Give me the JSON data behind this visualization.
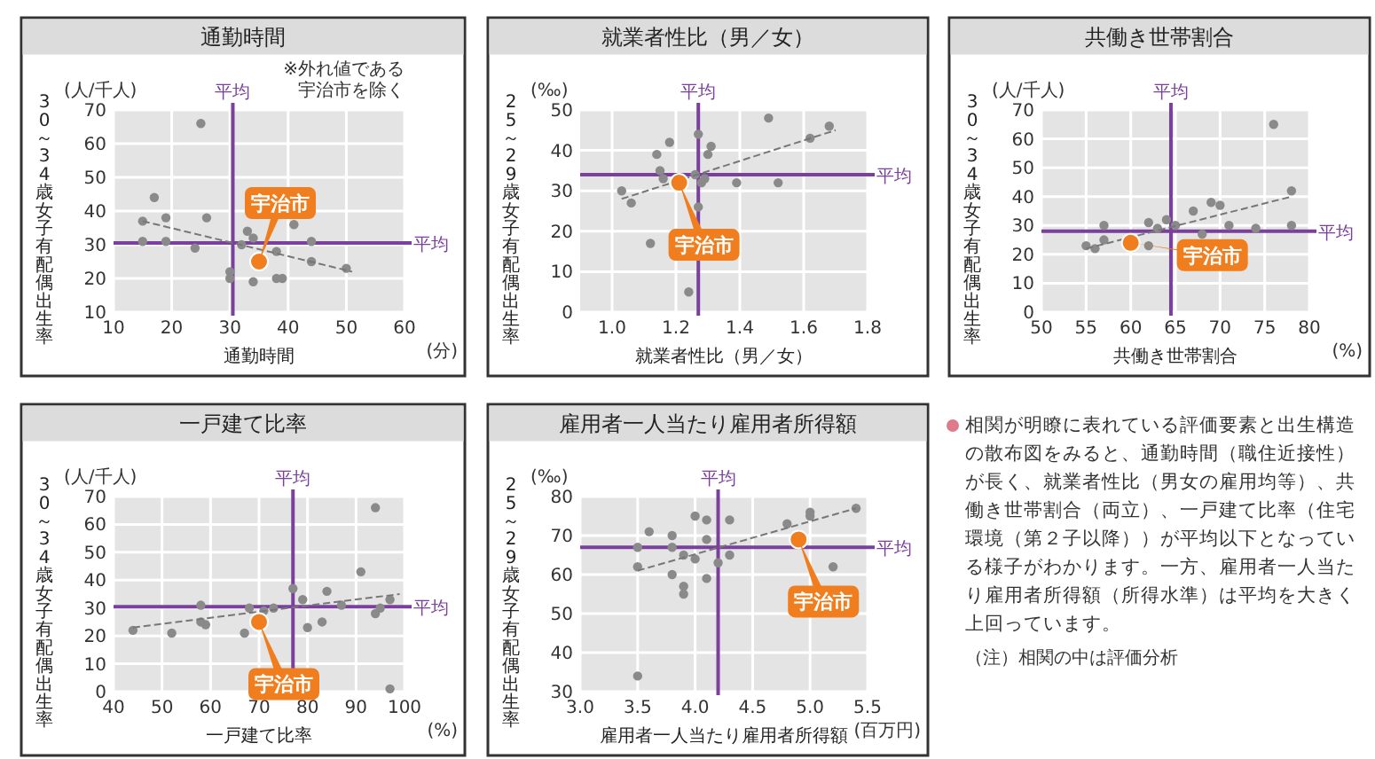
{
  "chart_data": [
    {
      "type": "scatter",
      "title": "通勤時間",
      "xlabel": "通勤時間",
      "ylabel": "30～34歳女子有配偶出生率",
      "xlim": [
        10,
        60
      ],
      "ylim": [
        10,
        70
      ],
      "xticks": [
        10,
        20,
        30,
        40,
        50,
        60
      ],
      "yticks": [
        10,
        20,
        30,
        40,
        50,
        60,
        70
      ],
      "grid": true,
      "marker": "circle",
      "series": [
        {
          "type": "scatter",
          "color": "#8a8a8a",
          "x": [
            25,
            17,
            15,
            19,
            26,
            15,
            19,
            24,
            33,
            34,
            32,
            30,
            30,
            34,
            38,
            39,
            41,
            44,
            44,
            50,
            38
          ],
          "values": [
            66,
            44,
            37,
            38,
            38,
            31,
            31,
            29,
            34,
            32,
            30,
            22,
            20,
            19,
            20,
            20,
            36,
            31,
            25,
            23,
            28
          ]
        },
        {
          "type": "line",
          "color": "#777777",
          "line_style": "dashed",
          "marker": "none",
          "x": [
            15,
            51
          ],
          "values": [
            37,
            22
          ]
        },
        {
          "type": "scatter",
          "color": "#f07d1e",
          "x": [
            35
          ],
          "values": [
            25
          ]
        }
      ],
      "ref_lines": [
        {
          "axis": "x",
          "value": 30.5,
          "label": "平均",
          "color": "#7b3f9e"
        },
        {
          "axis": "y",
          "value": 30.5,
          "label": "平均",
          "color": "#7b3f9e"
        }
      ],
      "annotations": [
        "(人/千人)",
        "(分)",
        "※外れ値である",
        "宇治市を除く",
        {
          "text": "宇治市",
          "x": 35,
          "y": 25
        }
      ]
    },
    {
      "type": "scatter",
      "title": "就業者性比（男／女）",
      "xlabel": "就業者性比（男／女）",
      "ylabel": "25～29歳女子有配偶出生率",
      "xlim": [
        0.9,
        1.8
      ],
      "ylim": [
        0,
        50
      ],
      "xticks": [
        {
          "value": 1,
          "label": "1.0"
        },
        1.2,
        1.4,
        1.6,
        1.8
      ],
      "yticks": [
        0,
        10,
        20,
        30,
        40,
        50
      ],
      "grid": true,
      "marker": "circle",
      "series": [
        {
          "type": "scatter",
          "color": "#8a8a8a",
          "x": [
            1.03,
            1.06,
            1.14,
            1.16,
            1.18,
            1.15,
            1.27,
            1.3,
            1.31,
            1.29,
            1.27,
            1.12,
            1.24,
            1.39,
            1.52,
            1.49,
            1.62,
            1.68,
            1.26,
            1.28
          ],
          "values": [
            30,
            27,
            39,
            33,
            42,
            35,
            44,
            39,
            41,
            33,
            26,
            17,
            5,
            32,
            32,
            48,
            43,
            46,
            34,
            32
          ]
        },
        {
          "type": "line",
          "color": "#777777",
          "line_style": "dashed",
          "marker": "none",
          "x": [
            1.03,
            1.7
          ],
          "values": [
            28,
            45
          ]
        },
        {
          "type": "scatter",
          "color": "#f07d1e",
          "x": [
            1.21
          ],
          "values": [
            32
          ]
        }
      ],
      "ref_lines": [
        {
          "axis": "x",
          "value": 1.27,
          "label": "平均",
          "color": "#7b3f9e"
        },
        {
          "axis": "y",
          "value": 34,
          "label": "平均",
          "color": "#7b3f9e"
        }
      ],
      "annotations": [
        "(‰)",
        {
          "text": "宇治市",
          "x": 1.21,
          "y": 32
        }
      ]
    },
    {
      "type": "scatter",
      "title": "共働き世帯割合",
      "xlabel": "共働き世帯割合",
      "ylabel": "30～34歳女子有配偶出生率",
      "xlim": [
        50,
        80
      ],
      "ylim": [
        0,
        70
      ],
      "xticks": [
        50,
        55,
        60,
        65,
        70,
        75,
        80
      ],
      "yticks": [
        0,
        10,
        20,
        30,
        40,
        50,
        60,
        70
      ],
      "grid": true,
      "marker": "circle",
      "series": [
        {
          "type": "scatter",
          "color": "#8a8a8a",
          "x": [
            57,
            55,
            56,
            57,
            62,
            63,
            62,
            64,
            65,
            67,
            68,
            69,
            70,
            71,
            74,
            76,
            78,
            78
          ],
          "values": [
            30,
            23,
            22,
            25,
            23,
            29,
            31,
            32,
            30,
            35,
            27,
            38,
            37,
            30,
            29,
            65,
            42,
            30
          ]
        },
        {
          "type": "line",
          "color": "#777777",
          "line_style": "dashed",
          "marker": "none",
          "x": [
            55,
            78
          ],
          "values": [
            22,
            40
          ]
        },
        {
          "type": "scatter",
          "color": "#f07d1e",
          "x": [
            60
          ],
          "values": [
            24
          ]
        }
      ],
      "ref_lines": [
        {
          "axis": "x",
          "value": 64.5,
          "label": "平均",
          "color": "#7b3f9e"
        },
        {
          "axis": "y",
          "value": 28,
          "label": "平均",
          "color": "#7b3f9e"
        }
      ],
      "annotations": [
        "(人/千人)",
        "(%)",
        {
          "text": "宇治市",
          "x": 60,
          "y": 24
        }
      ]
    },
    {
      "type": "scatter",
      "title": "一戸建て比率",
      "xlabel": "一戸建て比率",
      "ylabel": "30～34歳女子有配偶出生率",
      "xlim": [
        40,
        100
      ],
      "ylim": [
        0,
        70
      ],
      "xticks": [
        40,
        50,
        60,
        70,
        80,
        90,
        100
      ],
      "yticks": [
        0,
        10,
        20,
        30,
        40,
        50,
        60,
        70
      ],
      "grid": true,
      "marker": "circle",
      "series": [
        {
          "type": "scatter",
          "color": "#8a8a8a",
          "x": [
            44,
            52,
            58,
            58,
            59,
            67,
            68,
            71,
            73,
            77,
            79,
            80,
            83,
            84,
            87,
            91,
            94,
            94,
            95,
            97,
            97
          ],
          "values": [
            22,
            21,
            31,
            25,
            24,
            21,
            30,
            29,
            30,
            37,
            33,
            23,
            25,
            36,
            31,
            43,
            66,
            28,
            30,
            33,
            1
          ]
        },
        {
          "type": "line",
          "color": "#777777",
          "line_style": "dashed",
          "marker": "none",
          "x": [
            44,
            99
          ],
          "values": [
            23,
            35
          ]
        },
        {
          "type": "scatter",
          "color": "#f07d1e",
          "x": [
            70
          ],
          "values": [
            25
          ]
        }
      ],
      "ref_lines": [
        {
          "axis": "x",
          "value": 77,
          "label": "平均",
          "color": "#7b3f9e"
        },
        {
          "axis": "y",
          "value": 30.5,
          "label": "平均",
          "color": "#7b3f9e"
        }
      ],
      "annotations": [
        "(人/千人)",
        "(%)",
        {
          "text": "宇治市",
          "x": 70,
          "y": 25
        }
      ]
    },
    {
      "type": "scatter",
      "title": "雇用者一人当たり雇用者所得額",
      "xlabel": "雇用者一人当たり雇用者所得額",
      "ylabel": "25～29歳女子有配偶出生率",
      "xlim": [
        3,
        5.5
      ],
      "ylim": [
        30,
        80
      ],
      "xticks": [
        {
          "value": 3,
          "label": "3.0"
        },
        3.5,
        {
          "value": 4,
          "label": "4.0"
        },
        4.5,
        {
          "value": 5,
          "label": "5.0"
        },
        5.5
      ],
      "yticks": [
        30,
        40,
        50,
        60,
        70,
        80
      ],
      "grid": true,
      "marker": "circle",
      "series": [
        {
          "type": "scatter",
          "color": "#8a8a8a",
          "x": [
            3.5,
            3.6,
            3.5,
            3.8,
            3.8,
            3.9,
            3.9,
            3.9,
            4.0,
            4.1,
            4.0,
            4.1,
            4.1,
            4.2,
            4.3,
            4.3,
            4.8,
            5.0,
            5.0,
            5.4,
            5.2,
            3.5,
            3.8
          ],
          "values": [
            67,
            71,
            62,
            70,
            67,
            65,
            57,
            55,
            75,
            74,
            64,
            69,
            59,
            63,
            74,
            65,
            73,
            76,
            75,
            77,
            62,
            34,
            60
          ]
        },
        {
          "type": "line",
          "color": "#777777",
          "line_style": "dashed",
          "marker": "none",
          "x": [
            3.5,
            5.4
          ],
          "values": [
            61,
            77
          ]
        },
        {
          "type": "scatter",
          "color": "#f07d1e",
          "x": [
            4.9
          ],
          "values": [
            69
          ]
        }
      ],
      "ref_lines": [
        {
          "axis": "x",
          "value": 4.2,
          "label": "平均",
          "color": "#7b3f9e"
        },
        {
          "axis": "y",
          "value": 67,
          "label": "平均",
          "color": "#7b3f9e"
        }
      ],
      "annotations": [
        "(‰)",
        "(百万円)",
        {
          "text": "宇治市",
          "x": 4.9,
          "y": 69
        }
      ]
    },
    {
      "type": "other",
      "annotations": [
        "相関が明瞭に表れている評価要素と出生構造の散布図をみると、通勤時間（職住近接性）が長く、就業者性比（男女の雇用均等）、共働き世帯割合（両立）、一戸建て比率（住宅環境（第２子以降））が平均以下となっている様子がわかります。一方、雇用者一人当たり雇用者所得額（所得水準）は平均を大きく上回っています。",
        "（注）相関の中は評価分析"
      ]
    }
  ]
}
